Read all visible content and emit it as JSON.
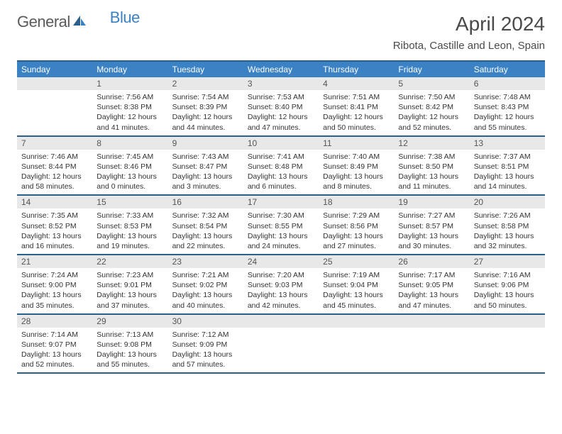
{
  "brand": {
    "part1": "General",
    "part2": "Blue"
  },
  "title": "April 2024",
  "location": "Ribota, Castille and Leon, Spain",
  "colors": {
    "header_bg": "#3b82c4",
    "border": "#2b5f8e",
    "daynum_bg": "#e8e8e8",
    "text": "#333333",
    "logo_gray": "#5a5a5a",
    "logo_blue": "#3b82c4"
  },
  "day_names": [
    "Sunday",
    "Monday",
    "Tuesday",
    "Wednesday",
    "Thursday",
    "Friday",
    "Saturday"
  ],
  "weeks": [
    [
      {
        "n": "",
        "sunrise": "",
        "sunset": "",
        "daylight": ""
      },
      {
        "n": "1",
        "sunrise": "7:56 AM",
        "sunset": "8:38 PM",
        "daylight": "12 hours and 41 minutes."
      },
      {
        "n": "2",
        "sunrise": "7:54 AM",
        "sunset": "8:39 PM",
        "daylight": "12 hours and 44 minutes."
      },
      {
        "n": "3",
        "sunrise": "7:53 AM",
        "sunset": "8:40 PM",
        "daylight": "12 hours and 47 minutes."
      },
      {
        "n": "4",
        "sunrise": "7:51 AM",
        "sunset": "8:41 PM",
        "daylight": "12 hours and 50 minutes."
      },
      {
        "n": "5",
        "sunrise": "7:50 AM",
        "sunset": "8:42 PM",
        "daylight": "12 hours and 52 minutes."
      },
      {
        "n": "6",
        "sunrise": "7:48 AM",
        "sunset": "8:43 PM",
        "daylight": "12 hours and 55 minutes."
      }
    ],
    [
      {
        "n": "7",
        "sunrise": "7:46 AM",
        "sunset": "8:44 PM",
        "daylight": "12 hours and 58 minutes."
      },
      {
        "n": "8",
        "sunrise": "7:45 AM",
        "sunset": "8:46 PM",
        "daylight": "13 hours and 0 minutes."
      },
      {
        "n": "9",
        "sunrise": "7:43 AM",
        "sunset": "8:47 PM",
        "daylight": "13 hours and 3 minutes."
      },
      {
        "n": "10",
        "sunrise": "7:41 AM",
        "sunset": "8:48 PM",
        "daylight": "13 hours and 6 minutes."
      },
      {
        "n": "11",
        "sunrise": "7:40 AM",
        "sunset": "8:49 PM",
        "daylight": "13 hours and 8 minutes."
      },
      {
        "n": "12",
        "sunrise": "7:38 AM",
        "sunset": "8:50 PM",
        "daylight": "13 hours and 11 minutes."
      },
      {
        "n": "13",
        "sunrise": "7:37 AM",
        "sunset": "8:51 PM",
        "daylight": "13 hours and 14 minutes."
      }
    ],
    [
      {
        "n": "14",
        "sunrise": "7:35 AM",
        "sunset": "8:52 PM",
        "daylight": "13 hours and 16 minutes."
      },
      {
        "n": "15",
        "sunrise": "7:33 AM",
        "sunset": "8:53 PM",
        "daylight": "13 hours and 19 minutes."
      },
      {
        "n": "16",
        "sunrise": "7:32 AM",
        "sunset": "8:54 PM",
        "daylight": "13 hours and 22 minutes."
      },
      {
        "n": "17",
        "sunrise": "7:30 AM",
        "sunset": "8:55 PM",
        "daylight": "13 hours and 24 minutes."
      },
      {
        "n": "18",
        "sunrise": "7:29 AM",
        "sunset": "8:56 PM",
        "daylight": "13 hours and 27 minutes."
      },
      {
        "n": "19",
        "sunrise": "7:27 AM",
        "sunset": "8:57 PM",
        "daylight": "13 hours and 30 minutes."
      },
      {
        "n": "20",
        "sunrise": "7:26 AM",
        "sunset": "8:58 PM",
        "daylight": "13 hours and 32 minutes."
      }
    ],
    [
      {
        "n": "21",
        "sunrise": "7:24 AM",
        "sunset": "9:00 PM",
        "daylight": "13 hours and 35 minutes."
      },
      {
        "n": "22",
        "sunrise": "7:23 AM",
        "sunset": "9:01 PM",
        "daylight": "13 hours and 37 minutes."
      },
      {
        "n": "23",
        "sunrise": "7:21 AM",
        "sunset": "9:02 PM",
        "daylight": "13 hours and 40 minutes."
      },
      {
        "n": "24",
        "sunrise": "7:20 AM",
        "sunset": "9:03 PM",
        "daylight": "13 hours and 42 minutes."
      },
      {
        "n": "25",
        "sunrise": "7:19 AM",
        "sunset": "9:04 PM",
        "daylight": "13 hours and 45 minutes."
      },
      {
        "n": "26",
        "sunrise": "7:17 AM",
        "sunset": "9:05 PM",
        "daylight": "13 hours and 47 minutes."
      },
      {
        "n": "27",
        "sunrise": "7:16 AM",
        "sunset": "9:06 PM",
        "daylight": "13 hours and 50 minutes."
      }
    ],
    [
      {
        "n": "28",
        "sunrise": "7:14 AM",
        "sunset": "9:07 PM",
        "daylight": "13 hours and 52 minutes."
      },
      {
        "n": "29",
        "sunrise": "7:13 AM",
        "sunset": "9:08 PM",
        "daylight": "13 hours and 55 minutes."
      },
      {
        "n": "30",
        "sunrise": "7:12 AM",
        "sunset": "9:09 PM",
        "daylight": "13 hours and 57 minutes."
      },
      {
        "n": "",
        "sunrise": "",
        "sunset": "",
        "daylight": ""
      },
      {
        "n": "",
        "sunrise": "",
        "sunset": "",
        "daylight": ""
      },
      {
        "n": "",
        "sunrise": "",
        "sunset": "",
        "daylight": ""
      },
      {
        "n": "",
        "sunrise": "",
        "sunset": "",
        "daylight": ""
      }
    ]
  ],
  "labels": {
    "sunrise_prefix": "Sunrise: ",
    "sunset_prefix": "Sunset: ",
    "daylight_prefix": "Daylight: "
  }
}
